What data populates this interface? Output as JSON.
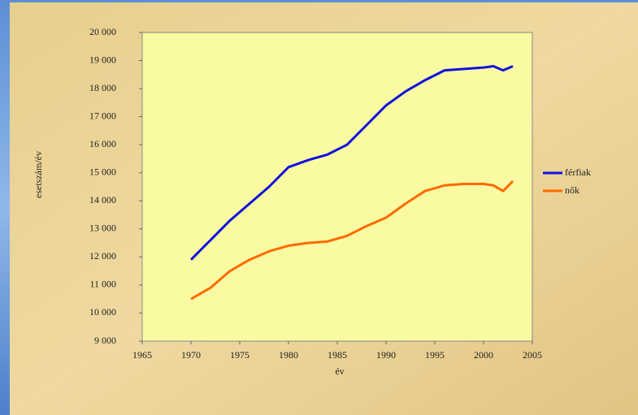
{
  "chart_data": {
    "type": "line",
    "xlabel": "év",
    "ylabel": "esetszám/év",
    "x": [
      1970,
      1972,
      1974,
      1976,
      1978,
      1980,
      1982,
      1984,
      1986,
      1988,
      1990,
      1992,
      1994,
      1996,
      1998,
      2000,
      2001,
      2002,
      2003
    ],
    "series": [
      {
        "name": "férfiak",
        "color": "#1010e0",
        "values": [
          11900,
          12600,
          13300,
          13900,
          14500,
          15200,
          15450,
          15650,
          16000,
          16700,
          17400,
          17900,
          18300,
          18650,
          18700,
          18750,
          18800,
          18650,
          18800
        ]
      },
      {
        "name": "nők",
        "color": "#ff6a00",
        "values": [
          10500,
          10900,
          11500,
          11900,
          12200,
          12400,
          12500,
          12550,
          12750,
          13100,
          13400,
          13900,
          14350,
          14550,
          14600,
          14600,
          14550,
          14350,
          14700
        ]
      }
    ],
    "xlim": [
      1965,
      2005
    ],
    "xticks": [
      1965,
      1970,
      1975,
      1980,
      1985,
      1990,
      1995,
      2000,
      2005
    ],
    "ylim": [
      9000,
      20000
    ],
    "yticks": [
      {
        "value": 9000,
        "label": "9 000"
      },
      {
        "value": 10000,
        "label": "10 000"
      },
      {
        "value": 11000,
        "label": "11 000"
      },
      {
        "value": 12000,
        "label": "12 000"
      },
      {
        "value": 13000,
        "label": "13 000"
      },
      {
        "value": 14000,
        "label": "14 000"
      },
      {
        "value": 15000,
        "label": "15 000"
      },
      {
        "value": 16000,
        "label": "16 000"
      },
      {
        "value": 17000,
        "label": "17 000"
      },
      {
        "value": 18000,
        "label": "18 000"
      },
      {
        "value": 19000,
        "label": "19 000"
      },
      {
        "value": 20000,
        "label": "20 000"
      }
    ],
    "legend": "right"
  }
}
